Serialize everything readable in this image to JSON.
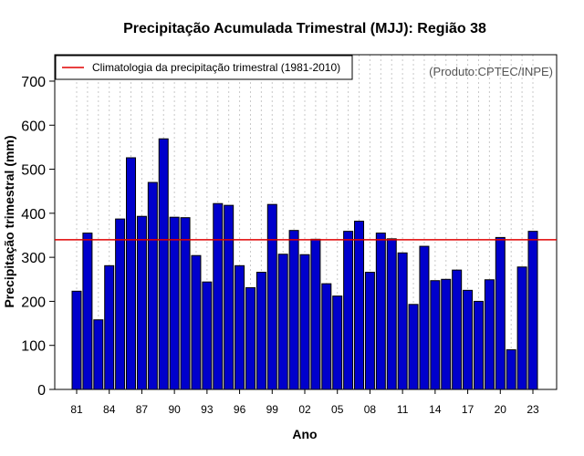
{
  "chart_data": {
    "type": "bar",
    "title": "Precipitação Acumulada Trimestral (MJJ): Região 38",
    "xlabel": "Ano",
    "ylabel": "Precipitação trimestral (mm)",
    "ylim": [
      0,
      760
    ],
    "yticks": [
      0,
      100,
      200,
      300,
      400,
      500,
      600,
      700
    ],
    "categories": [
      "1981",
      "1982",
      "1983",
      "1984",
      "1985",
      "1986",
      "1987",
      "1988",
      "1989",
      "1990",
      "1991",
      "1992",
      "1993",
      "1994",
      "1995",
      "1996",
      "1997",
      "1998",
      "1999",
      "2000",
      "2001",
      "2002",
      "2003",
      "2004",
      "2005",
      "2006",
      "2007",
      "2008",
      "2009",
      "2010",
      "2011",
      "2012",
      "2013",
      "2014",
      "2015",
      "2016",
      "2017",
      "2018",
      "2019",
      "2020",
      "2021",
      "2022",
      "2023"
    ],
    "xtick_labels": [
      {
        "index": 0,
        "label": "81"
      },
      {
        "index": 3,
        "label": "84"
      },
      {
        "index": 6,
        "label": "87"
      },
      {
        "index": 9,
        "label": "90"
      },
      {
        "index": 12,
        "label": "93"
      },
      {
        "index": 15,
        "label": "96"
      },
      {
        "index": 18,
        "label": "99"
      },
      {
        "index": 21,
        "label": "02"
      },
      {
        "index": 24,
        "label": "05"
      },
      {
        "index": 27,
        "label": "08"
      },
      {
        "index": 30,
        "label": "11"
      },
      {
        "index": 33,
        "label": "14"
      },
      {
        "index": 36,
        "label": "17"
      },
      {
        "index": 39,
        "label": "20"
      },
      {
        "index": 42,
        "label": "23"
      }
    ],
    "values": [
      223,
      355,
      158,
      281,
      387,
      526,
      393,
      470,
      569,
      391,
      390,
      304,
      244,
      422,
      418,
      281,
      231,
      266,
      420,
      307,
      361,
      306,
      341,
      240,
      212,
      359,
      382,
      266,
      355,
      342,
      310,
      193,
      325,
      247,
      250,
      271,
      225,
      200,
      249,
      345,
      90,
      278,
      359
    ],
    "climatology": 340,
    "legend": {
      "label": "Climatologia da precipitação trimestral (1981-2010)",
      "placement": "top-left"
    },
    "credit": "(Produto:CPTEC/INPE)",
    "grid": "vertical dotted",
    "bar_color": "#0000cc",
    "line_color": "#e00000"
  }
}
